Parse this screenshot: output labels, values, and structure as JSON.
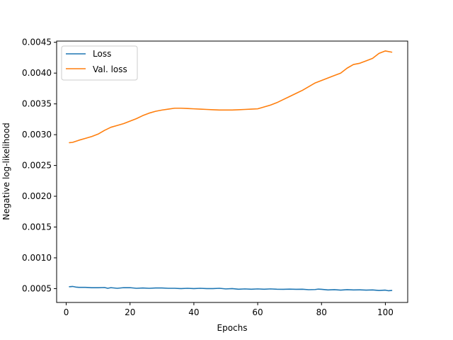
{
  "chart_data": {
    "type": "line",
    "title": "",
    "xlabel": "Epochs",
    "ylabel": "Negative log-likelihood",
    "xlim": [
      -3,
      107
    ],
    "ylim": [
      0.000275,
      0.00452
    ],
    "x_ticks": [
      0,
      20,
      40,
      60,
      80,
      100
    ],
    "x_tick_labels": [
      "0",
      "20",
      "40",
      "60",
      "80",
      "100"
    ],
    "y_ticks": [
      0.0005,
      0.001,
      0.0015,
      0.002,
      0.0025,
      0.003,
      0.0035,
      0.004,
      0.0045
    ],
    "y_tick_labels": [
      "0.0005",
      "0.0010",
      "0.0015",
      "0.0020",
      "0.0025",
      "0.0030",
      "0.0035",
      "0.0040",
      "0.0045"
    ],
    "grid": false,
    "legend_position": "top-left",
    "series": [
      {
        "name": "Loss",
        "color": "#1f77b4",
        "points": [
          [
            1,
            0.00053
          ],
          [
            2,
            0.000535
          ],
          [
            3,
            0.000525
          ],
          [
            4,
            0.00052
          ],
          [
            6,
            0.00052
          ],
          [
            8,
            0.000515
          ],
          [
            10,
            0.000515
          ],
          [
            12,
            0.000518
          ],
          [
            13,
            0.000505
          ],
          [
            14,
            0.000515
          ],
          [
            16,
            0.000505
          ],
          [
            18,
            0.000515
          ],
          [
            20,
            0.000515
          ],
          [
            22,
            0.000505
          ],
          [
            24,
            0.00051
          ],
          [
            26,
            0.000505
          ],
          [
            28,
            0.00051
          ],
          [
            30,
            0.00051
          ],
          [
            32,
            0.000505
          ],
          [
            34,
            0.000505
          ],
          [
            36,
            0.0005
          ],
          [
            38,
            0.000505
          ],
          [
            40,
            0.0005
          ],
          [
            42,
            0.000505
          ],
          [
            44,
            0.0005
          ],
          [
            46,
            0.0005
          ],
          [
            48,
            0.000505
          ],
          [
            50,
            0.000495
          ],
          [
            52,
            0.0005
          ],
          [
            54,
            0.00049
          ],
          [
            56,
            0.000495
          ],
          [
            58,
            0.00049
          ],
          [
            60,
            0.000495
          ],
          [
            62,
            0.00049
          ],
          [
            64,
            0.000495
          ],
          [
            66,
            0.00049
          ],
          [
            68,
            0.000488
          ],
          [
            70,
            0.000492
          ],
          [
            72,
            0.000488
          ],
          [
            74,
            0.00049
          ],
          [
            76,
            0.000482
          ],
          [
            78,
            0.000485
          ],
          [
            79,
            0.000492
          ],
          [
            80,
            0.000488
          ],
          [
            82,
            0.000478
          ],
          [
            84,
            0.000483
          ],
          [
            86,
            0.000475
          ],
          [
            88,
            0.000483
          ],
          [
            90,
            0.000478
          ],
          [
            92,
            0.00048
          ],
          [
            94,
            0.000475
          ],
          [
            96,
            0.000478
          ],
          [
            98,
            0.00047
          ],
          [
            100,
            0.000475
          ],
          [
            101,
            0.000465
          ],
          [
            102,
            0.00047
          ]
        ]
      },
      {
        "name": "Val. loss",
        "color": "#ff7f0e",
        "points": [
          [
            1,
            0.00287
          ],
          [
            2,
            0.002875
          ],
          [
            4,
            0.00291
          ],
          [
            6,
            0.00294
          ],
          [
            8,
            0.00297
          ],
          [
            10,
            0.00301
          ],
          [
            12,
            0.00307
          ],
          [
            14,
            0.00312
          ],
          [
            16,
            0.00315
          ],
          [
            18,
            0.00318
          ],
          [
            20,
            0.00322
          ],
          [
            22,
            0.00326
          ],
          [
            24,
            0.00331
          ],
          [
            26,
            0.00335
          ],
          [
            28,
            0.00338
          ],
          [
            30,
            0.0034
          ],
          [
            32,
            0.003415
          ],
          [
            34,
            0.00343
          ],
          [
            36,
            0.00343
          ],
          [
            38,
            0.003425
          ],
          [
            40,
            0.00342
          ],
          [
            42,
            0.003415
          ],
          [
            44,
            0.00341
          ],
          [
            46,
            0.003405
          ],
          [
            48,
            0.0034
          ],
          [
            50,
            0.0034
          ],
          [
            52,
            0.0034
          ],
          [
            54,
            0.003405
          ],
          [
            56,
            0.00341
          ],
          [
            58,
            0.003415
          ],
          [
            60,
            0.00342
          ],
          [
            62,
            0.00345
          ],
          [
            64,
            0.00348
          ],
          [
            66,
            0.00352
          ],
          [
            68,
            0.00357
          ],
          [
            70,
            0.00362
          ],
          [
            72,
            0.00367
          ],
          [
            74,
            0.00372
          ],
          [
            76,
            0.00378
          ],
          [
            78,
            0.00384
          ],
          [
            80,
            0.00388
          ],
          [
            82,
            0.00392
          ],
          [
            84,
            0.00396
          ],
          [
            86,
            0.004
          ],
          [
            88,
            0.00408
          ],
          [
            90,
            0.00414
          ],
          [
            92,
            0.00416
          ],
          [
            94,
            0.0042
          ],
          [
            96,
            0.00424
          ],
          [
            98,
            0.00432
          ],
          [
            100,
            0.00436
          ],
          [
            102,
            0.00434
          ]
        ]
      }
    ]
  }
}
